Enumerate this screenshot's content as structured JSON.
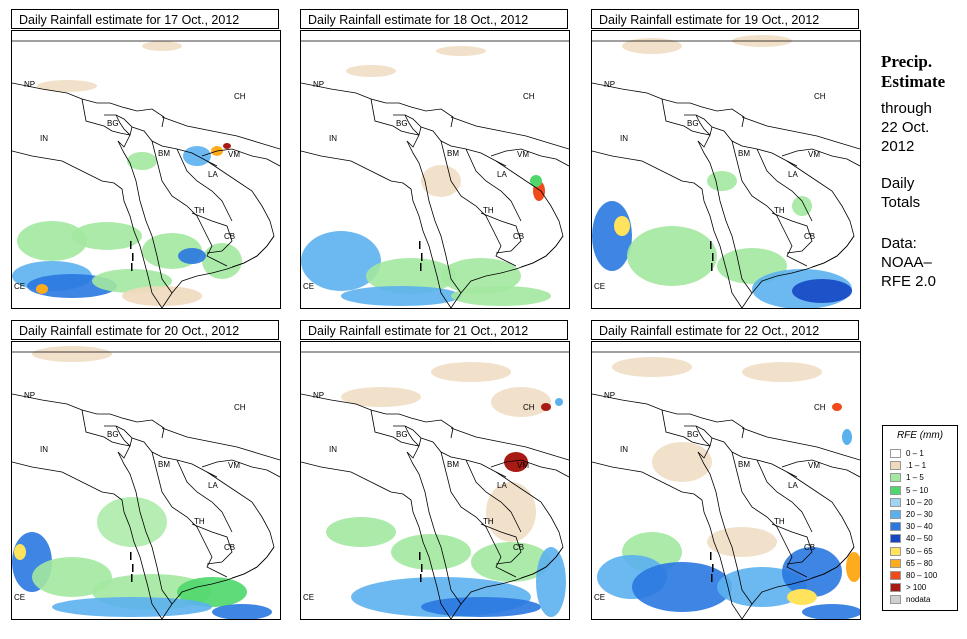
{
  "panels": [
    {
      "title": "Daily Rainfall estimate for  17 Oct., 2012"
    },
    {
      "title": "Daily Rainfall estimate for  18 Oct., 2012"
    },
    {
      "title": "Daily Rainfall estimate for  19 Oct., 2012"
    },
    {
      "title": "Daily Rainfall estimate for  20 Oct., 2012"
    },
    {
      "title": "Daily Rainfall estimate for  21 Oct., 2012"
    },
    {
      "title": "Daily Rainfall estimate for  22 Oct., 2012"
    }
  ],
  "map_labels": {
    "np": "NP",
    "ch": "CH",
    "in": "IN",
    "bg": "BG",
    "bm": "BM",
    "vm": "VM",
    "la": "LA",
    "th": "TH",
    "cb": "CB",
    "ce": "CE"
  },
  "sidebar": {
    "heading_line1": "Precip.",
    "heading_line2": "Estimate",
    "through_line1": "through",
    "through_line2": "22 Oct.",
    "through_line3": "2012",
    "daily_line1": "Daily",
    "daily_line2": "Totals",
    "data_line1": "Data:",
    "data_line2": "NOAA–",
    "data_line3": "RFE 2.0"
  },
  "legend": {
    "title": "RFE (mm)",
    "entries": [
      {
        "label": "0 – 1",
        "color": "#ffffff"
      },
      {
        "label": ".1 – 1",
        "color": "#efd9bd"
      },
      {
        "label": "1 – 5",
        "color": "#a3e8a0"
      },
      {
        "label": "5 – 10",
        "color": "#4fd76b"
      },
      {
        "label": "10 – 20",
        "color": "#9fd5f5"
      },
      {
        "label": "20 – 30",
        "color": "#5bb1ee"
      },
      {
        "label": "30 – 40",
        "color": "#2a78e0"
      },
      {
        "label": "40 – 50",
        "color": "#1547c4"
      },
      {
        "label": "50 – 65",
        "color": "#ffe35c"
      },
      {
        "label": "65 – 80",
        "color": "#ffab1e"
      },
      {
        "label": "80 – 100",
        "color": "#f04a1a"
      },
      {
        "label": "> 100",
        "color": "#a81a14"
      },
      {
        "label": "nodata",
        "color": "#cfcfcf"
      }
    ]
  }
}
